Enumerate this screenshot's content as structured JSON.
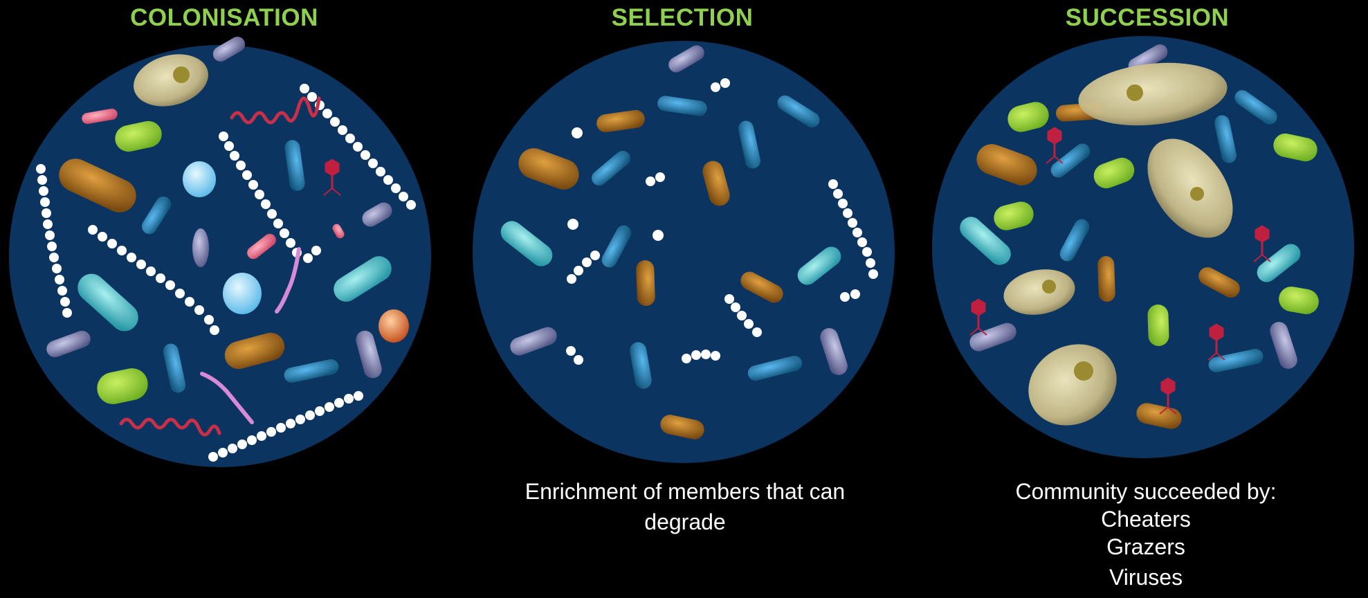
{
  "panels": [
    {
      "title": "COLONISATION",
      "caption": []
    },
    {
      "title": "SELECTION",
      "caption": [
        "Enrichment of members that can",
        "degrade"
      ]
    },
    {
      "title": "SUCCESSION",
      "caption": [
        "Community succeeded by:",
        "Cheaters",
        "Grazers",
        "Viruses"
      ]
    }
  ],
  "colors": {
    "background": "#000000",
    "dish": "#0b3560",
    "title": "#8fd14f",
    "caption": "#ffffff"
  }
}
